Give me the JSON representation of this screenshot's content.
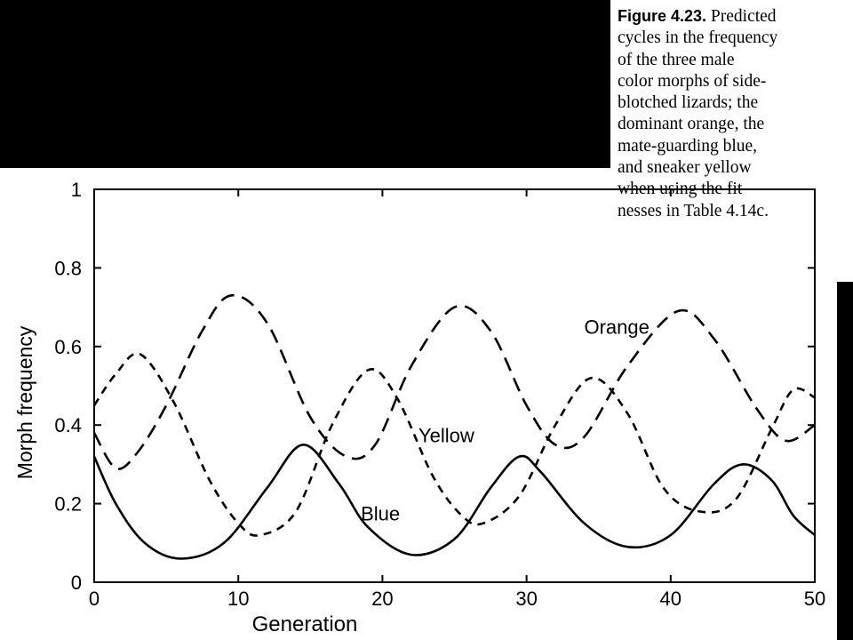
{
  "caption": {
    "label": "Figure 4.23.",
    "text": " Predicted\ncycles in the frequency\nof the three male\ncolor morphs of side-\nblotched lizards; the\ndominant orange, the\nmate-guarding blue,\nand sneaker yellow\nwhen using the fit-\nnesses in Table 4.14c."
  },
  "chart_data": {
    "type": "line",
    "title": "",
    "xlabel": "Generation",
    "ylabel": "Morph frequency",
    "xlim": [
      0,
      50
    ],
    "ylim": [
      0,
      1
    ],
    "xticks": [
      0,
      10,
      20,
      30,
      40,
      50
    ],
    "yticks": [
      0,
      0.2,
      0.4,
      0.6,
      0.8,
      1
    ],
    "ytick_labels": [
      "0",
      "0.2",
      "0.4",
      "0.6",
      "0.8",
      "1"
    ],
    "grid": false,
    "series": [
      {
        "name": "Orange",
        "style": "long-dash",
        "x": [
          0,
          1.5,
          3,
          5,
          7.5,
          9.5,
          12,
          15,
          17.5,
          19.5,
          22,
          25,
          27.5,
          30,
          32,
          34,
          37,
          40.5,
          43,
          46,
          48,
          50
        ],
        "y": [
          0.38,
          0.29,
          0.33,
          0.45,
          0.64,
          0.73,
          0.66,
          0.42,
          0.32,
          0.35,
          0.55,
          0.7,
          0.64,
          0.45,
          0.35,
          0.37,
          0.55,
          0.69,
          0.62,
          0.44,
          0.36,
          0.4
        ]
      },
      {
        "name": "Yellow",
        "style": "short-dash",
        "x": [
          0,
          1.5,
          3.2,
          5.5,
          8,
          10,
          11.5,
          14,
          16.5,
          19,
          21,
          23.5,
          25.5,
          27,
          29.5,
          32,
          34.5,
          37,
          39.5,
          42,
          44.5,
          47,
          48.5,
          50
        ],
        "y": [
          0.45,
          0.53,
          0.58,
          0.46,
          0.26,
          0.15,
          0.12,
          0.18,
          0.4,
          0.54,
          0.47,
          0.27,
          0.17,
          0.15,
          0.22,
          0.4,
          0.52,
          0.43,
          0.24,
          0.18,
          0.21,
          0.39,
          0.49,
          0.47
        ]
      },
      {
        "name": "Blue",
        "style": "solid",
        "x": [
          0,
          1.5,
          3.5,
          6,
          9,
          12,
          14.5,
          17,
          19,
          22,
          25,
          27.5,
          29.5,
          31,
          34,
          37,
          40,
          43,
          45,
          47,
          48.5,
          50
        ],
        "y": [
          0.32,
          0.2,
          0.1,
          0.06,
          0.1,
          0.24,
          0.35,
          0.25,
          0.14,
          0.07,
          0.11,
          0.24,
          0.32,
          0.28,
          0.15,
          0.09,
          0.12,
          0.25,
          0.3,
          0.26,
          0.17,
          0.12
        ]
      }
    ],
    "annotations": [
      {
        "text": "Orange",
        "x": 34,
        "y": 0.65
      },
      {
        "text": "Yellow",
        "x": 22.5,
        "y": 0.375
      },
      {
        "text": "Blue",
        "x": 18.5,
        "y": 0.175
      }
    ]
  }
}
